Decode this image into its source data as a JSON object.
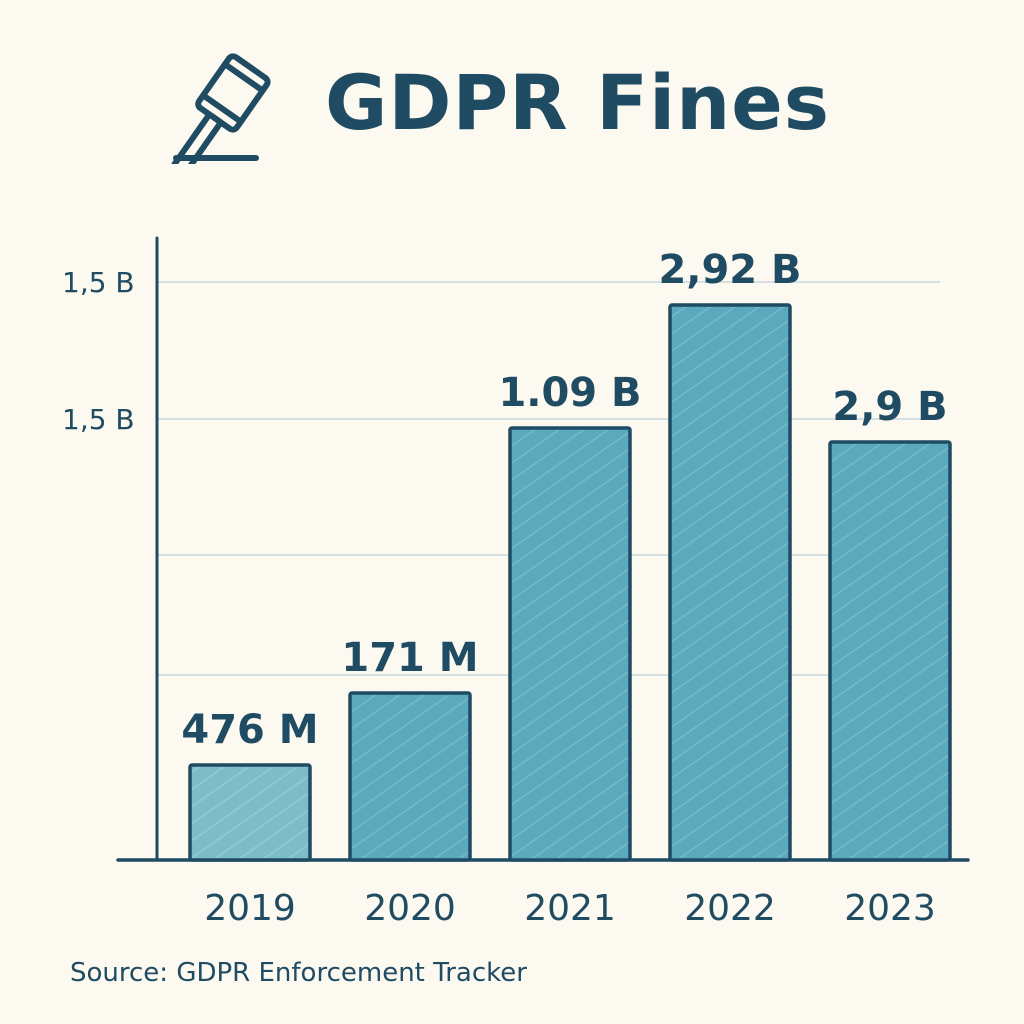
{
  "header": {
    "title": "GDPR Fines",
    "icon": "gavel-icon"
  },
  "source": "Source: GDPR Enforcement Tracker",
  "colors": {
    "bar_fill": "#5aa9bd",
    "bar_fill_light": "#7dbdca",
    "ink": "#1f4b63",
    "grid": "#c8d8de",
    "background": "#fcf9f0"
  },
  "chart_data": {
    "type": "bar",
    "title": "GDPR Fines",
    "xlabel": "",
    "ylabel": "",
    "categories": [
      "2019",
      "2020",
      "2021",
      "2022",
      "2023"
    ],
    "values": [
      0.476,
      0.171,
      1.09,
      2.92,
      2.9
    ],
    "data_labels": [
      "476 M",
      "171 M",
      "1.09 B",
      "2,92 B",
      "2,9 B"
    ],
    "y_tick_labels": [
      "1,5 B",
      "1,5 B"
    ],
    "grid": true,
    "legend": "none"
  }
}
